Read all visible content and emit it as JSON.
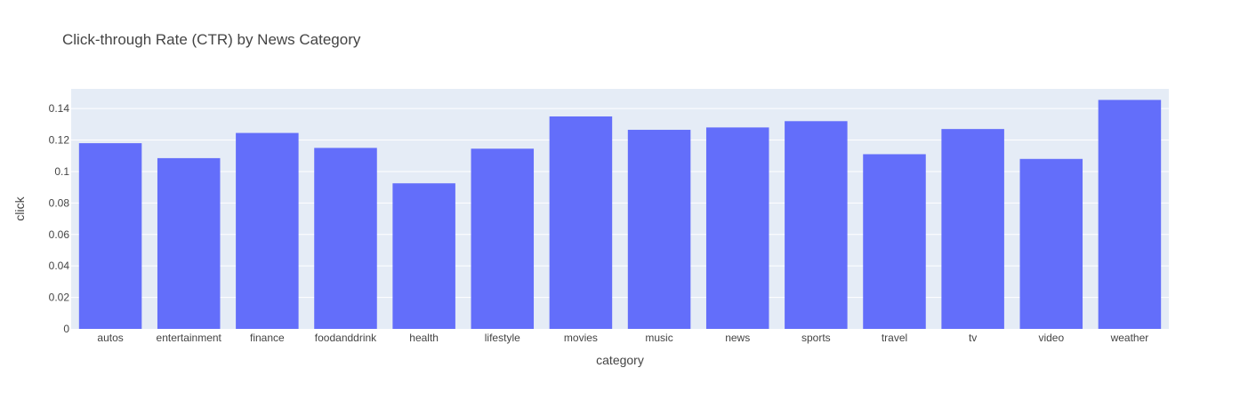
{
  "colors": {
    "plot_bg": "#e5ecf6",
    "grid": "#ffffff",
    "bar": "#636efa",
    "text": "#444444"
  },
  "chart_data": {
    "type": "bar",
    "title": "Click-through Rate (CTR) by News Category",
    "xlabel": "category",
    "ylabel": "click",
    "categories": [
      "autos",
      "entertainment",
      "finance",
      "foodanddrink",
      "health",
      "lifestyle",
      "movies",
      "music",
      "news",
      "sports",
      "travel",
      "tv",
      "video",
      "weather"
    ],
    "values": [
      0.118,
      0.1085,
      0.1245,
      0.115,
      0.0925,
      0.1145,
      0.135,
      0.1265,
      0.128,
      0.132,
      0.111,
      0.127,
      0.108,
      0.1455
    ],
    "ylim": [
      0,
      0.1525
    ],
    "yticks": [
      0,
      0.02,
      0.04,
      0.06,
      0.08,
      0.1,
      0.12,
      0.14
    ],
    "ytick_labels": [
      "0",
      "0.02",
      "0.04",
      "0.06",
      "0.08",
      "0.1",
      "0.12",
      "0.14"
    ],
    "grid": true,
    "legend": false
  }
}
